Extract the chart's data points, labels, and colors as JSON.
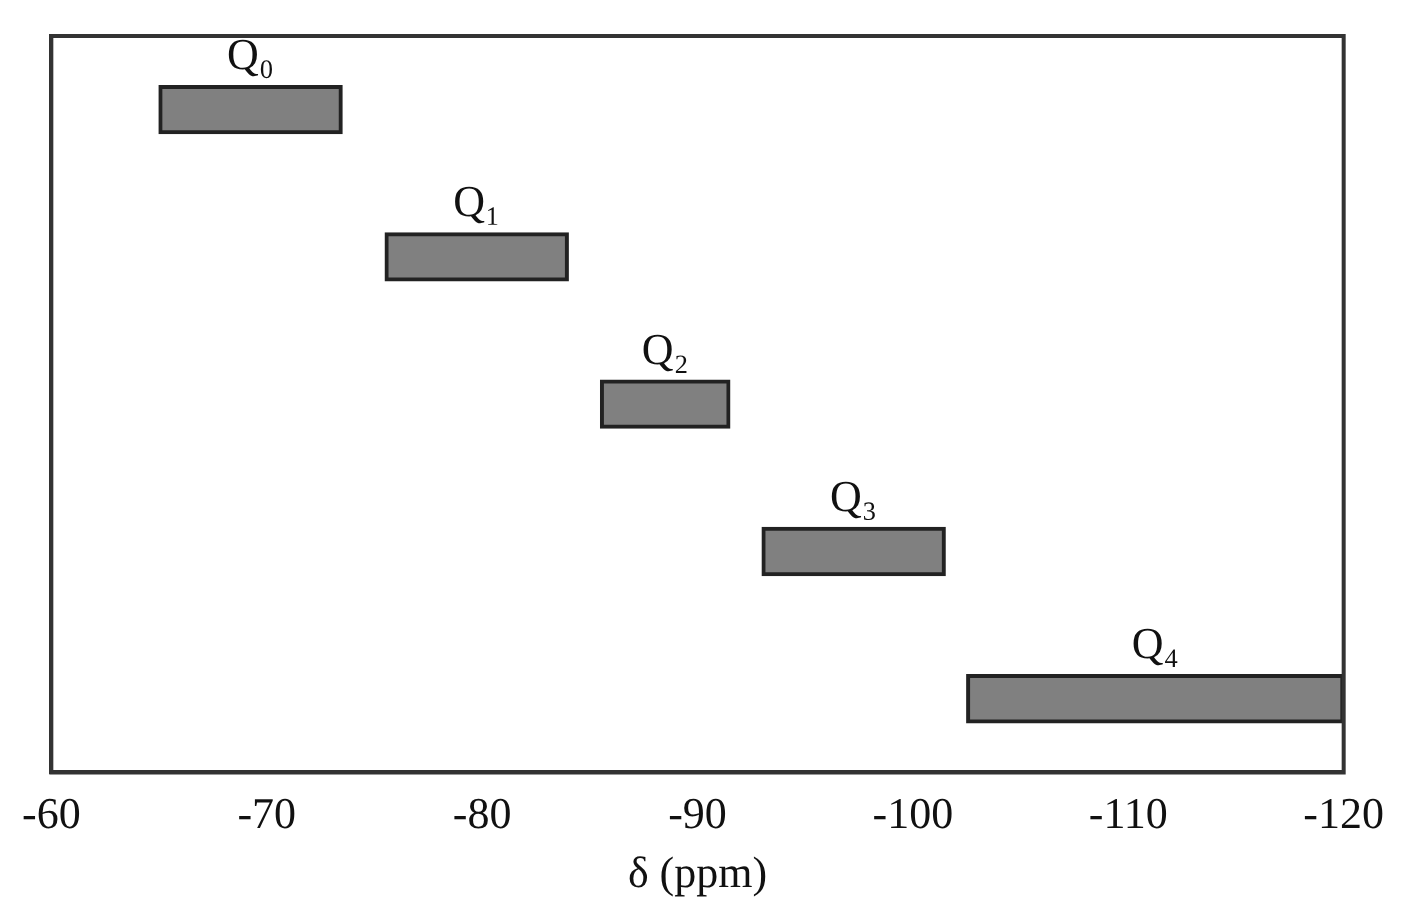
{
  "chart_data": {
    "type": "bar",
    "orientation": "horizontal",
    "xlabel": "δ (ppm)",
    "categories": [
      "Q₀",
      "Q₁",
      "Q₂",
      "Q₃",
      "Q₄"
    ],
    "base": [
      -65,
      -75.5,
      -85.5,
      -93,
      -102.5
    ],
    "values": [
      -8.5,
      -8.5,
      -6,
      -8.5,
      -17.5
    ],
    "color": "#808080",
    "xlim": [
      -60,
      -120
    ],
    "xticks": [
      -60,
      -70,
      -80,
      -90,
      -100,
      -110,
      -120
    ],
    "tick_labels": "x",
    "grid": false,
    "legend": false
  }
}
